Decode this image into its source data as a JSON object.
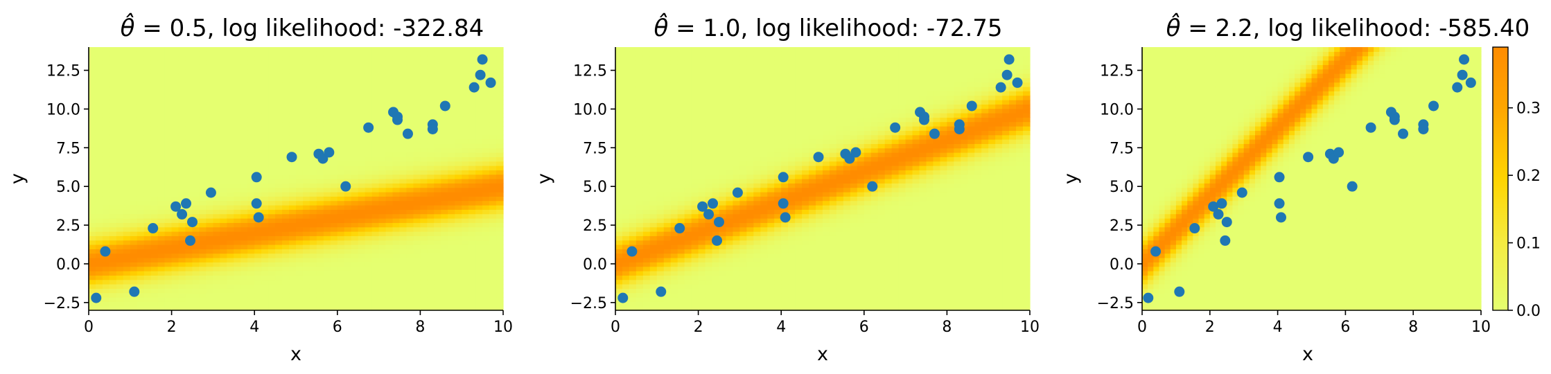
{
  "colors": {
    "point": "#1f77b4",
    "colormap": [
      "#e5ff70",
      "#f5eb40",
      "#ffd400",
      "#ffa600",
      "#ff8c00"
    ]
  },
  "chart_data": [
    {
      "type": "heatmap+scatter",
      "title": "= 0.5, log likelihood: -322.84",
      "theta_hat": 0.5,
      "log_likelihood": -322.84,
      "xlabel": "x",
      "ylabel": "y",
      "xlim": [
        0,
        10
      ],
      "ylim": [
        -3,
        14
      ],
      "xticks": [
        0,
        2,
        4,
        6,
        8,
        10
      ],
      "yticks": [
        -2.5,
        0.0,
        2.5,
        5.0,
        7.5,
        10.0,
        12.5
      ]
    },
    {
      "type": "heatmap+scatter",
      "title": "= 1.0, log likelihood: -72.75",
      "theta_hat": 1.0,
      "log_likelihood": -72.75,
      "xlabel": "x",
      "ylabel": "y",
      "xlim": [
        0,
        10
      ],
      "ylim": [
        -3,
        14
      ],
      "xticks": [
        0,
        2,
        4,
        6,
        8,
        10
      ],
      "yticks": [
        -2.5,
        0.0,
        2.5,
        5.0,
        7.5,
        10.0,
        12.5
      ]
    },
    {
      "type": "heatmap+scatter",
      "title": "= 2.2, log likelihood: -585.40",
      "theta_hat": 2.2,
      "log_likelihood": -585.4,
      "xlabel": "x",
      "ylabel": "y",
      "xlim": [
        0,
        10
      ],
      "ylim": [
        -3,
        14
      ],
      "xticks": [
        0,
        2,
        4,
        6,
        8,
        10
      ],
      "yticks": [
        -2.5,
        0.0,
        2.5,
        5.0,
        7.5,
        10.0,
        12.5
      ]
    }
  ],
  "scatter_points": {
    "x": [
      0.18,
      0.4,
      1.1,
      1.55,
      2.1,
      2.25,
      2.35,
      2.45,
      2.5,
      2.95,
      4.05,
      4.05,
      4.1,
      4.9,
      5.55,
      5.65,
      5.8,
      6.2,
      6.75,
      7.35,
      7.45,
      7.45,
      7.7,
      8.3,
      8.3,
      8.6,
      9.3,
      9.45,
      9.5,
      9.7
    ],
    "y": [
      -2.2,
      0.8,
      -1.8,
      2.3,
      3.7,
      3.2,
      3.9,
      1.5,
      2.7,
      4.6,
      5.6,
      3.9,
      3.0,
      6.9,
      7.1,
      6.8,
      7.2,
      5.0,
      8.8,
      9.8,
      9.5,
      9.3,
      8.4,
      9.0,
      8.7,
      10.2,
      11.4,
      12.2,
      13.2,
      11.7
    ]
  },
  "colorbar": {
    "ticks": [
      0.0,
      0.1,
      0.2,
      0.3
    ],
    "tick_labels": [
      "0.0",
      "0.1",
      "0.2",
      "0.3"
    ],
    "vmin": 0.0,
    "vmax": 0.39
  }
}
